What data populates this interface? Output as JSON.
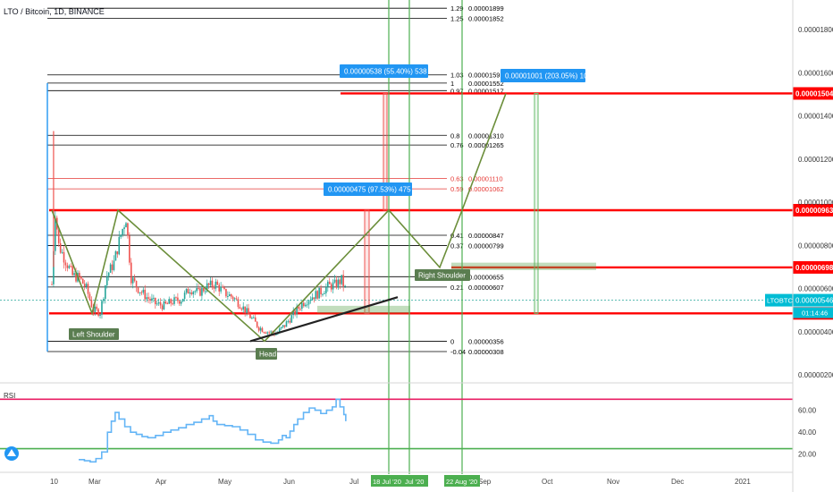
{
  "header": {
    "symbol_title": "LTO / Bitcoin, 1D, BINANCE"
  },
  "colors": {
    "up": "#26a69a",
    "down": "#ef5350",
    "fib": "#000000",
    "fib_red": "#e53935",
    "hline": "#ff0000",
    "vline": "#4caf50",
    "pattern": "#6b8e3a",
    "trend": "#222222",
    "label_blue": "#2196f3",
    "rsi_line": "#64b5f6",
    "rsi_upper": "#e91e63",
    "rsi_lower": "#4caf50",
    "tag_green": "#5a7d50",
    "ticker_bg": "#00bcd4",
    "price_tag": "#ff0000"
  },
  "chart_data": {
    "type": "candlestick",
    "title": "LTO / Bitcoin, 1D, BINANCE",
    "ylim": [
      1.63e-06,
      1.937e-05
    ],
    "y_axis_labels": [
      "0.00001800",
      "0.00001600",
      "0.00001400",
      "0.00001200",
      "0.00001000",
      "0.00000800",
      "0.00000600",
      "0.00000400",
      "0.00000200"
    ],
    "x_axis_labels": [
      "10",
      "Mar",
      "Apr",
      "May",
      "Jun",
      "Jul",
      "Aug",
      "Sep",
      "Oct",
      "Nov",
      "Dec",
      "2021"
    ],
    "x_highlight_labels": [
      "18 Jul '20",
      "Jul '20",
      "22 Aug '20"
    ],
    "price_points": [
      [
        0,
        6.2e-06
      ],
      [
        2,
        9.6e-06
      ],
      [
        4,
        8e-06
      ],
      [
        8,
        7.3e-06
      ],
      [
        12,
        6.6e-06
      ],
      [
        16,
        6.5e-06
      ],
      [
        20,
        6e-06
      ],
      [
        24,
        5e-06
      ],
      [
        28,
        4.9e-06
      ],
      [
        32,
        6.6e-06
      ],
      [
        36,
        7.2e-06
      ],
      [
        40,
        8.5e-06
      ],
      [
        43,
        9.3e-06
      ],
      [
        46,
        6.5e-06
      ],
      [
        50,
        6e-06
      ],
      [
        55,
        5.6e-06
      ],
      [
        60,
        5.3e-06
      ],
      [
        65,
        5.2e-06
      ],
      [
        70,
        5.4e-06
      ],
      [
        75,
        5.5e-06
      ],
      [
        80,
        6e-06
      ],
      [
        85,
        5.8e-06
      ],
      [
        90,
        6.1e-06
      ],
      [
        95,
        6.2e-06
      ],
      [
        100,
        5.8e-06
      ],
      [
        105,
        5.6e-06
      ],
      [
        110,
        5.2e-06
      ],
      [
        115,
        4.7e-06
      ],
      [
        120,
        4.2e-06
      ],
      [
        125,
        4e-06
      ],
      [
        130,
        3.9e-06
      ],
      [
        135,
        4.3e-06
      ],
      [
        140,
        4.8e-06
      ],
      [
        145,
        5.3e-06
      ],
      [
        150,
        5.6e-06
      ],
      [
        155,
        5.8e-06
      ],
      [
        160,
        6.1e-06
      ],
      [
        165,
        6.2e-06
      ],
      [
        168,
        6.4e-06
      ],
      [
        170,
        6e-06
      ]
    ],
    "fib_levels": [
      {
        "ratio": "1.29",
        "price": "0.00001899",
        "red": false
      },
      {
        "ratio": "1.25",
        "price": "0.00001852",
        "red": false
      },
      {
        "ratio": "1.03",
        "price": "0.0000159",
        "red": false
      },
      {
        "ratio": "1",
        "price": "0.00001552",
        "red": false
      },
      {
        "ratio": "0.97",
        "price": "0.00001517",
        "red": false
      },
      {
        "ratio": "0.8",
        "price": "0.00001310",
        "red": false
      },
      {
        "ratio": "0.76",
        "price": "0.00001265",
        "red": false
      },
      {
        "ratio": "0.63",
        "price": "0.00001110",
        "red": true
      },
      {
        "ratio": "0.59",
        "price": "0.00001062",
        "red": true
      },
      {
        "ratio": "0.41",
        "price": "0.00000847",
        "red": false
      },
      {
        "ratio": "0.37",
        "price": "0.00000799",
        "red": false
      },
      {
        "ratio": "0.25",
        "price": "0.00000655",
        "red": false
      },
      {
        "ratio": "0.21",
        "price": "0.00000607",
        "red": false
      },
      {
        "ratio": "0",
        "price": "0.00000356",
        "red": false
      },
      {
        "ratio": "-0.04",
        "price": "0.00000308",
        "red": false
      }
    ],
    "horizontal_levels": [
      "0.00001504",
      "0.00000963",
      "0.00000698",
      "0.00000485"
    ],
    "current_ticker": "LTOBTC",
    "current_price": "0.00000546",
    "countdown": "01:14:46",
    "measure_labels": [
      "0.00000538 (55.40%) 538",
      "0.00000475 (97.53%) 475",
      "0.00001001 (203.05%) 1001"
    ],
    "pattern_labels": [
      "Left Shoulder",
      "Head",
      "Right Shoulder"
    ],
    "rsi": {
      "label": "RSI",
      "ticks": [
        "60.00",
        "40.00",
        "20.00"
      ],
      "ylim": [
        10,
        80
      ],
      "upper": 70,
      "lower": 25,
      "values": [
        [
          0,
          15
        ],
        [
          3,
          14
        ],
        [
          6,
          13
        ],
        [
          9,
          16
        ],
        [
          12,
          22
        ],
        [
          15,
          40
        ],
        [
          17,
          50
        ],
        [
          19,
          58
        ],
        [
          21,
          52
        ],
        [
          24,
          45
        ],
        [
          27,
          40
        ],
        [
          30,
          38
        ],
        [
          33,
          36
        ],
        [
          36,
          35
        ],
        [
          40,
          37
        ],
        [
          44,
          40
        ],
        [
          48,
          42
        ],
        [
          52,
          44
        ],
        [
          56,
          47
        ],
        [
          60,
          49
        ],
        [
          64,
          52
        ],
        [
          68,
          55
        ],
        [
          70,
          50
        ],
        [
          72,
          47
        ],
        [
          76,
          46
        ],
        [
          80,
          45
        ],
        [
          84,
          42
        ],
        [
          88,
          38
        ],
        [
          92,
          33
        ],
        [
          96,
          31
        ],
        [
          100,
          30
        ],
        [
          104,
          33
        ],
        [
          106,
          37
        ],
        [
          108,
          35
        ],
        [
          110,
          41
        ],
        [
          112,
          47
        ],
        [
          114,
          52
        ],
        [
          117,
          58
        ],
        [
          120,
          62
        ],
        [
          123,
          60
        ],
        [
          126,
          57
        ],
        [
          129,
          60
        ],
        [
          132,
          63
        ],
        [
          134,
          70
        ],
        [
          136,
          63
        ],
        [
          138,
          56
        ],
        [
          139,
          50
        ]
      ]
    }
  }
}
